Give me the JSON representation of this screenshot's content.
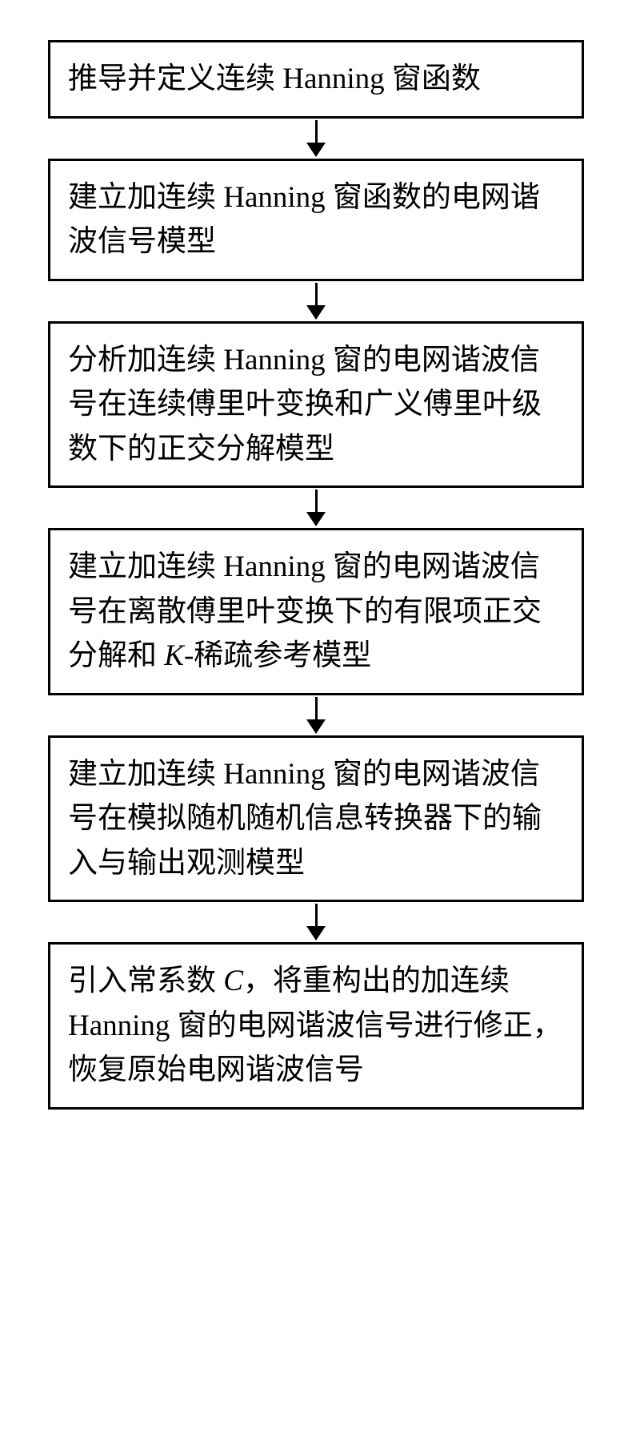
{
  "flowchart": {
    "background_color": "#ffffff",
    "border_color": "#000000",
    "border_width": 3,
    "font_family": "SimSun",
    "text_color": "#000000",
    "box_padding": "18px 22px",
    "arrow_height": 50,
    "arrow_line_width": 3,
    "arrow_head_size": 12,
    "steps": [
      {
        "text": "推导并定义连续 Hanning 窗函数",
        "font_size": 37,
        "lines": 1
      },
      {
        "text": "建立加连续 Hanning 窗函数的电网谐波信号模型",
        "font_size": 37,
        "lines": 2
      },
      {
        "text": "分析加连续 Hanning 窗的电网谐波信号在连续傅里叶变换和广义傅里叶级数下的正交分解模型",
        "font_size": 37,
        "lines": 4
      },
      {
        "text_parts": [
          {
            "text": "建立加连续 Hanning 窗的电网谐波信号在离散傅里叶变换下的有限项正交分解和 ",
            "italic": false
          },
          {
            "text": "K",
            "italic": true
          },
          {
            "text": "-稀疏参考模型",
            "italic": false
          }
        ],
        "font_size": 37,
        "lines": 4
      },
      {
        "text": "建立加连续 Hanning 窗的电网谐波信号在模拟随机随机信息转换器下的输入与输出观测模型",
        "font_size": 37,
        "lines": 4
      },
      {
        "text_parts": [
          {
            "text": "引入常系数 ",
            "italic": false
          },
          {
            "text": "C",
            "italic": true
          },
          {
            "text": "，将重构出的加连续 Hanning 窗的电网谐波信号进行修正，恢复原始电网谐波信号",
            "italic": false
          }
        ],
        "font_size": 37,
        "lines": 4
      }
    ]
  }
}
